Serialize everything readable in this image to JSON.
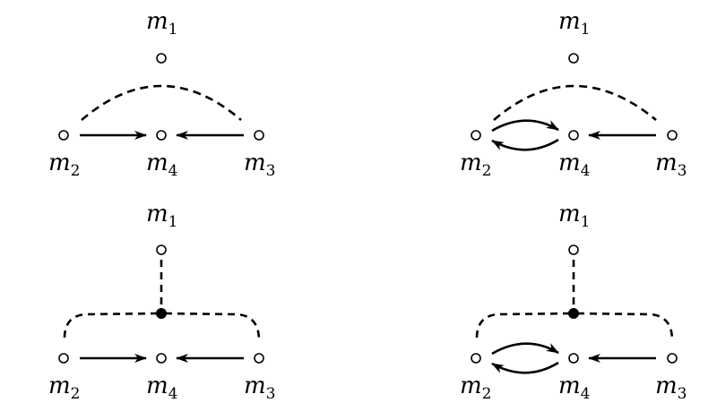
{
  "diagrams": [
    {
      "id": "top-left",
      "nodes": [
        {
          "id": "m1",
          "label": "m",
          "sub": "1"
        },
        {
          "id": "m2",
          "label": "m",
          "sub": "2"
        },
        {
          "id": "m4",
          "label": "m",
          "sub": "4"
        },
        {
          "id": "m3",
          "label": "m",
          "sub": "3"
        }
      ],
      "edges": [
        {
          "from": "m2",
          "to": "m4",
          "kind": "directed"
        },
        {
          "from": "m3",
          "to": "m4",
          "kind": "directed"
        },
        {
          "from": "m2",
          "to": "m3",
          "kind": "dashed-arc"
        }
      ]
    },
    {
      "id": "top-right",
      "nodes": [
        {
          "id": "m1",
          "label": "m",
          "sub": "1"
        },
        {
          "id": "m2",
          "label": "m",
          "sub": "2"
        },
        {
          "id": "m4",
          "label": "m",
          "sub": "4"
        },
        {
          "id": "m3",
          "label": "m",
          "sub": "3"
        }
      ],
      "edges": [
        {
          "from": "m2",
          "to": "m4",
          "kind": "curved-directed"
        },
        {
          "from": "m4",
          "to": "m2",
          "kind": "curved-directed"
        },
        {
          "from": "m3",
          "to": "m4",
          "kind": "directed"
        },
        {
          "from": "m2",
          "to": "m3",
          "kind": "dashed-arc"
        }
      ]
    },
    {
      "id": "bottom-left",
      "nodes": [
        {
          "id": "m1",
          "label": "m",
          "sub": "1"
        },
        {
          "id": "hub",
          "label": "",
          "sub": "",
          "filled": true
        },
        {
          "id": "m2",
          "label": "m",
          "sub": "2"
        },
        {
          "id": "m4",
          "label": "m",
          "sub": "4"
        },
        {
          "id": "m3",
          "label": "m",
          "sub": "3"
        }
      ],
      "edges": [
        {
          "from": "m1",
          "to": "hub",
          "kind": "dashed"
        },
        {
          "from": "hub",
          "to": "m2",
          "kind": "dashed-corner"
        },
        {
          "from": "hub",
          "to": "m3",
          "kind": "dashed-corner"
        },
        {
          "from": "m2",
          "to": "m4",
          "kind": "directed"
        },
        {
          "from": "m3",
          "to": "m4",
          "kind": "directed"
        }
      ]
    },
    {
      "id": "bottom-right",
      "nodes": [
        {
          "id": "m1",
          "label": "m",
          "sub": "1"
        },
        {
          "id": "hub",
          "label": "",
          "sub": "",
          "filled": true
        },
        {
          "id": "m2",
          "label": "m",
          "sub": "2"
        },
        {
          "id": "m4",
          "label": "m",
          "sub": "4"
        },
        {
          "id": "m3",
          "label": "m",
          "sub": "3"
        }
      ],
      "edges": [
        {
          "from": "m1",
          "to": "hub",
          "kind": "dashed"
        },
        {
          "from": "hub",
          "to": "m2",
          "kind": "dashed-corner"
        },
        {
          "from": "hub",
          "to": "m3",
          "kind": "dashed-corner"
        },
        {
          "from": "m2",
          "to": "m4",
          "kind": "curved-directed"
        },
        {
          "from": "m4",
          "to": "m2",
          "kind": "curved-directed"
        },
        {
          "from": "m3",
          "to": "m4",
          "kind": "directed"
        }
      ]
    }
  ]
}
